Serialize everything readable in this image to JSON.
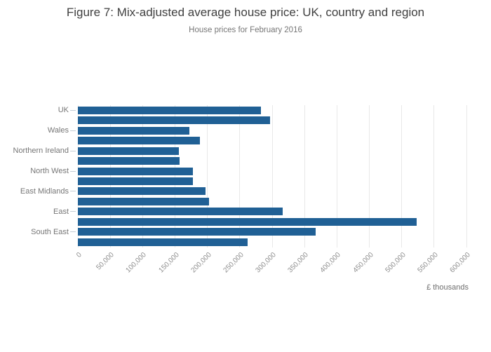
{
  "title": "Figure 7: Mix-adjusted average house price: UK, country and region",
  "subtitle": "House prices for February 2016",
  "chart_data": {
    "type": "bar",
    "orientation": "horizontal",
    "title": "Figure 7: Mix-adjusted average house price: UK, country and region",
    "subtitle": "House prices for February 2016",
    "xlabel": "£ thousands",
    "xlim": [
      0,
      600000
    ],
    "grid": true,
    "bar_color": "#206095",
    "bars": [
      {
        "label": "UK",
        "value": 283000
      },
      {
        "label": "",
        "value": 297000
      },
      {
        "label": "Wales",
        "value": 172000
      },
      {
        "label": "",
        "value": 188000
      },
      {
        "label": "Northern Ireland",
        "value": 156000
      },
      {
        "label": "",
        "value": 157000
      },
      {
        "label": "North West",
        "value": 178000
      },
      {
        "label": "",
        "value": 178000
      },
      {
        "label": "East Midlands",
        "value": 197000
      },
      {
        "label": "",
        "value": 202000
      },
      {
        "label": "East",
        "value": 316000
      },
      {
        "label": "",
        "value": 523000
      },
      {
        "label": "South East",
        "value": 367000
      },
      {
        "label": "",
        "value": 262000
      }
    ],
    "x_ticks": [
      {
        "value": 0,
        "label": "0"
      },
      {
        "value": 50000,
        "label": "50,000"
      },
      {
        "value": 100000,
        "label": "100,000"
      },
      {
        "value": 150000,
        "label": "150,000"
      },
      {
        "value": 200000,
        "label": "200,000"
      },
      {
        "value": 250000,
        "label": "250,000"
      },
      {
        "value": 300000,
        "label": "300,000"
      },
      {
        "value": 350000,
        "label": "350,000"
      },
      {
        "value": 400000,
        "label": "400,000"
      },
      {
        "value": 450000,
        "label": "450,000"
      },
      {
        "value": 500000,
        "label": "500,000"
      },
      {
        "value": 550000,
        "label": "550,000"
      },
      {
        "value": 600000,
        "label": "600,000"
      }
    ]
  }
}
